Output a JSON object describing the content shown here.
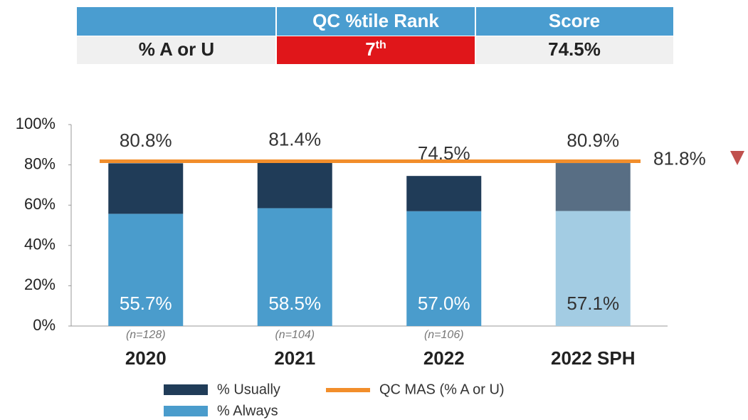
{
  "table": {
    "columns": [
      "QC %tile Rank",
      "Score"
    ],
    "row": {
      "label": "% A or U",
      "rank": "7",
      "rank_suffix": "th",
      "score": "74.5%"
    }
  },
  "chart_data": {
    "type": "stacked_bar",
    "categories": [
      "2020",
      "2021",
      "2022",
      "2022 SPH"
    ],
    "sublabels": [
      "(n=128)",
      "(n=104)",
      "(n=106)",
      null
    ],
    "series": [
      {
        "name": "% Always",
        "color": "#4a9ccc",
        "colors": [
          "#4a9ccc",
          "#4a9ccc",
          "#4a9ccc",
          "#a3cce3"
        ],
        "values": [
          55.7,
          58.5,
          57.0,
          57.1
        ],
        "value_labels": [
          "55.7%",
          "58.5%",
          "57.0%",
          "57.1%"
        ]
      },
      {
        "name": "% Usually",
        "color": "#203c58",
        "colors": [
          "#203c58",
          "#203c58",
          "#203c58",
          "#586e84"
        ],
        "values": [
          25.1,
          22.9,
          17.5,
          23.8
        ]
      }
    ],
    "totals": {
      "values": [
        80.8,
        81.4,
        74.5,
        80.9
      ],
      "value_labels": [
        "80.8%",
        "81.4%",
        "74.5%",
        "80.9%"
      ]
    },
    "reference_line": {
      "name": "QC MAS (% A or U)",
      "value": 81.8,
      "value_label": "81.8%",
      "color": "#f28e2b"
    },
    "ylim": [
      0,
      100
    ],
    "yticks": [
      {
        "value": 0,
        "label": "0%"
      },
      {
        "value": 20,
        "label": "20%"
      },
      {
        "value": 40,
        "label": "40%"
      },
      {
        "value": 60,
        "label": "60%"
      },
      {
        "value": 80,
        "label": "80%"
      },
      {
        "value": 100,
        "label": "100%"
      }
    ]
  }
}
